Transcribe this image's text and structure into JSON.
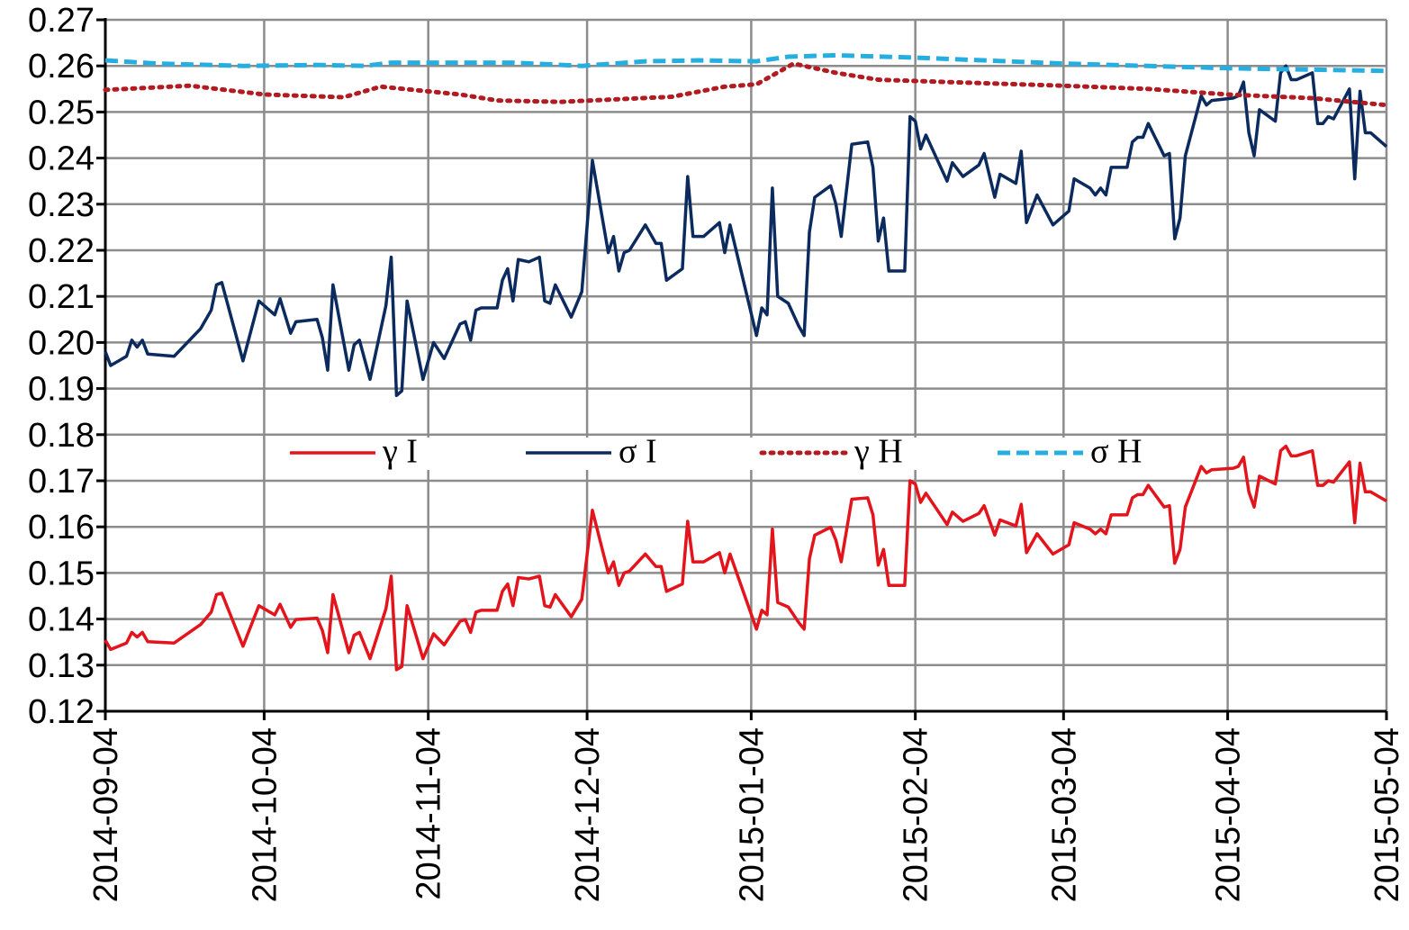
{
  "chart_data": {
    "type": "line",
    "xlim": [
      "2014-09-04",
      "2015-05-04"
    ],
    "xticks": [
      "2014-09-04",
      "2014-10-04",
      "2014-11-04",
      "2014-12-04",
      "2015-01-04",
      "2015-02-04",
      "2015-03-04",
      "2015-04-04",
      "2015-05-04"
    ],
    "ylim": [
      0.12,
      0.27
    ],
    "yticks": [
      0.12,
      0.13,
      0.14,
      0.15,
      0.16,
      0.17,
      0.18,
      0.19,
      {
        "value": 0.2,
        "label": "0.20"
      },
      0.21,
      0.22,
      0.23,
      0.24,
      0.25,
      0.26,
      0.27
    ],
    "grid": true,
    "legend": "inside-center",
    "x": [
      "2014-09-04",
      "2014-09-05",
      "2014-09-08",
      "2014-09-09",
      "2014-09-10",
      "2014-09-11",
      "2014-09-12",
      "2014-09-17",
      "2014-09-22",
      "2014-09-24",
      "2014-09-25",
      "2014-09-26",
      "2014-09-30",
      "2014-10-03",
      "2014-10-06",
      "2014-10-07",
      "2014-10-09",
      "2014-10-10",
      "2014-10-14",
      "2014-10-15",
      "2014-10-16",
      "2014-10-17",
      "2014-10-20",
      "2014-10-21",
      "2014-10-22",
      "2014-10-24",
      "2014-10-27",
      "2014-10-28",
      "2014-10-29",
      "2014-10-30",
      "2014-10-31",
      "2014-11-03",
      "2014-11-05",
      "2014-11-07",
      "2014-11-10",
      "2014-11-11",
      "2014-11-12",
      "2014-11-13",
      "2014-11-14",
      "2014-11-17",
      "2014-11-18",
      "2014-11-19",
      "2014-11-20",
      "2014-11-21",
      "2014-11-23",
      "2014-11-25",
      "2014-11-26",
      "2014-11-27",
      "2014-11-28",
      "2014-12-01",
      "2014-12-03",
      "2014-12-05",
      "2014-12-08",
      "2014-12-09",
      "2014-12-10",
      "2014-12-11",
      "2014-12-12",
      "2014-12-15",
      "2014-12-17",
      "2014-12-18",
      "2014-12-19",
      "2014-12-22",
      "2014-12-23",
      "2014-12-24",
      "2014-12-26",
      "2014-12-29",
      "2014-12-30",
      "2014-12-31",
      "2015-01-05",
      "2015-01-06",
      "2015-01-07",
      "2015-01-08",
      "2015-01-09",
      "2015-01-11",
      "2015-01-13",
      "2015-01-14",
      "2015-01-15",
      "2015-01-16",
      "2015-01-19",
      "2015-01-20",
      "2015-01-21",
      "2015-01-23",
      "2015-01-26",
      "2015-01-27",
      "2015-01-28",
      "2015-01-29",
      "2015-01-30",
      "2015-02-02",
      "2015-02-03",
      "2015-02-04",
      "2015-02-05",
      "2015-02-06",
      "2015-02-10",
      "2015-02-11",
      "2015-02-13",
      "2015-02-16",
      "2015-02-17",
      "2015-02-19",
      "2015-02-20",
      "2015-02-23",
      "2015-02-24",
      "2015-02-25",
      "2015-02-27",
      "2015-03-02",
      "2015-03-05",
      "2015-03-06",
      "2015-03-09",
      "2015-03-10",
      "2015-03-11",
      "2015-03-12",
      "2015-03-13",
      "2015-03-16",
      "2015-03-17",
      "2015-03-18",
      "2015-03-19",
      "2015-03-20",
      "2015-03-23",
      "2015-03-24",
      "2015-03-25",
      "2015-03-26",
      "2015-03-27",
      "2015-03-30",
      "2015-03-31",
      "2015-04-01",
      "2015-04-05",
      "2015-04-06",
      "2015-04-07",
      "2015-04-08",
      "2015-04-09",
      "2015-04-10",
      "2015-04-13",
      "2015-04-14",
      "2015-04-15",
      "2015-04-16",
      "2015-04-17",
      "2015-04-20",
      "2015-04-21",
      "2015-04-22",
      "2015-04-23",
      "2015-04-24",
      "2015-04-27",
      "2015-04-28",
      "2015-04-29",
      "2015-04-30",
      "2015-05-01",
      "2015-05-04"
    ],
    "series": [
      {
        "name": "γ I",
        "color": "#e3141b",
        "dash": "solid",
        "values": [
          0.1354,
          0.1334,
          0.1348,
          0.1371,
          0.1361,
          0.1371,
          0.1351,
          0.1348,
          0.1388,
          0.1415,
          0.1453,
          0.1456,
          0.1341,
          0.1429,
          0.1409,
          0.1432,
          0.1382,
          0.1399,
          0.1402,
          0.1375,
          0.1327,
          0.1453,
          0.1327,
          0.1365,
          0.1371,
          0.1314,
          0.1422,
          0.1493,
          0.129,
          0.1297,
          0.1429,
          0.1314,
          0.1368,
          0.1344,
          0.1395,
          0.1399,
          0.1371,
          0.1415,
          0.1419,
          0.1419,
          0.146,
          0.1476,
          0.1429,
          0.149,
          0.1487,
          0.1493,
          0.1429,
          0.1426,
          0.1453,
          0.1405,
          0.1443,
          0.1636,
          0.15,
          0.1524,
          0.1473,
          0.15,
          0.1504,
          0.1541,
          0.1514,
          0.1514,
          0.146,
          0.1476,
          0.1612,
          0.1524,
          0.1524,
          0.1544,
          0.15,
          0.1541,
          0.1378,
          0.1419,
          0.1409,
          0.1595,
          0.1436,
          0.1426,
          0.1392,
          0.1378,
          0.1531,
          0.1582,
          0.1599,
          0.1571,
          0.1524,
          0.166,
          0.1663,
          0.1626,
          0.1517,
          0.1551,
          0.1473,
          0.1473,
          0.17,
          0.1693,
          0.1653,
          0.1673,
          0.1605,
          0.1632,
          0.1612,
          0.1629,
          0.1646,
          0.1582,
          0.1615,
          0.1602,
          0.1649,
          0.1544,
          0.1585,
          0.1541,
          0.1561,
          0.1609,
          0.1595,
          0.1585,
          0.1595,
          0.1585,
          0.1626,
          0.1626,
          0.1663,
          0.167,
          0.167,
          0.169,
          0.1643,
          0.1646,
          0.1521,
          0.1551,
          0.1643,
          0.1731,
          0.1717,
          0.1724,
          0.1727,
          0.1731,
          0.1751,
          0.1676,
          0.1643,
          0.171,
          0.1693,
          0.1765,
          0.1775,
          0.1754,
          0.1754,
          0.1765,
          0.169,
          0.169,
          0.17,
          0.1697,
          0.1741,
          0.1609,
          0.1738,
          0.1676,
          0.1676,
          0.1656
        ]
      },
      {
        "name": "σ I",
        "color": "#0b2a5e",
        "dash": "solid",
        "values": [
          0.198,
          0.195,
          0.197,
          0.2005,
          0.199,
          0.2005,
          0.1975,
          0.197,
          0.203,
          0.207,
          0.2125,
          0.213,
          0.196,
          0.209,
          0.206,
          0.2095,
          0.202,
          0.2045,
          0.205,
          0.201,
          0.194,
          0.2125,
          0.194,
          0.1995,
          0.2005,
          0.192,
          0.208,
          0.2185,
          0.1885,
          0.1895,
          0.209,
          0.192,
          0.2,
          0.1965,
          0.204,
          0.2045,
          0.2005,
          0.207,
          0.2075,
          0.2075,
          0.2135,
          0.216,
          0.209,
          0.218,
          0.2175,
          0.2185,
          0.209,
          0.2085,
          0.2125,
          0.2055,
          0.211,
          0.2395,
          0.2195,
          0.223,
          0.2155,
          0.2195,
          0.22,
          0.2255,
          0.2215,
          0.2215,
          0.2135,
          0.216,
          0.236,
          0.223,
          0.223,
          0.226,
          0.2195,
          0.2255,
          0.2015,
          0.2075,
          0.206,
          0.2335,
          0.21,
          0.2085,
          0.2035,
          0.2015,
          0.224,
          0.2315,
          0.234,
          0.23,
          0.223,
          0.243,
          0.2435,
          0.238,
          0.222,
          0.227,
          0.2155,
          0.2155,
          0.249,
          0.248,
          0.242,
          0.245,
          0.235,
          0.239,
          0.236,
          0.2385,
          0.241,
          0.2315,
          0.2365,
          0.2345,
          0.2415,
          0.226,
          0.232,
          0.2255,
          0.2285,
          0.2355,
          0.2335,
          0.232,
          0.2335,
          0.232,
          0.238,
          0.238,
          0.2435,
          0.2445,
          0.2445,
          0.2475,
          0.2405,
          0.241,
          0.2225,
          0.227,
          0.2405,
          0.2535,
          0.2515,
          0.2525,
          0.253,
          0.2535,
          0.2565,
          0.2455,
          0.2405,
          0.2505,
          0.248,
          0.2585,
          0.26,
          0.257,
          0.257,
          0.2585,
          0.2475,
          0.2475,
          0.249,
          0.2485,
          0.255,
          0.2355,
          0.2545,
          0.2455,
          0.2455,
          0.2425
        ]
      },
      {
        "name": "γ H",
        "color": "#b01c22",
        "dash": "dotted",
        "x": [
          "2014-09-04",
          "2014-09-20",
          "2014-10-04",
          "2014-10-19",
          "2014-10-26",
          "2014-11-10",
          "2014-11-17",
          "2014-11-29",
          "2014-12-20",
          "2014-12-30",
          "2015-01-05",
          "2015-01-12",
          "2015-01-20",
          "2015-01-28",
          "2015-02-10",
          "2015-03-04",
          "2015-03-20",
          "2015-04-04",
          "2015-04-20",
          "2015-05-04"
        ],
        "values": [
          0.2548,
          0.2557,
          0.2538,
          0.2532,
          0.2555,
          0.2538,
          0.2525,
          0.2522,
          0.2533,
          0.2555,
          0.256,
          0.2605,
          0.2585,
          0.257,
          0.2565,
          0.2557,
          0.255,
          0.2538,
          0.253,
          0.2515
        ]
      },
      {
        "name": "σ H",
        "color": "#27aee0",
        "dash": "dashed",
        "x": [
          "2014-09-04",
          "2014-09-14",
          "2014-09-30",
          "2014-10-14",
          "2014-10-23",
          "2014-10-28",
          "2014-11-20",
          "2014-12-03",
          "2014-12-15",
          "2014-12-25",
          "2015-01-05",
          "2015-01-11",
          "2015-01-20",
          "2015-02-04",
          "2015-03-04",
          "2015-04-04",
          "2015-05-04"
        ],
        "values": [
          0.2612,
          0.2605,
          0.26,
          0.2602,
          0.26,
          0.2607,
          0.2607,
          0.26,
          0.261,
          0.2612,
          0.261,
          0.262,
          0.2623,
          0.2618,
          0.2605,
          0.2595,
          0.2589
        ]
      }
    ]
  }
}
